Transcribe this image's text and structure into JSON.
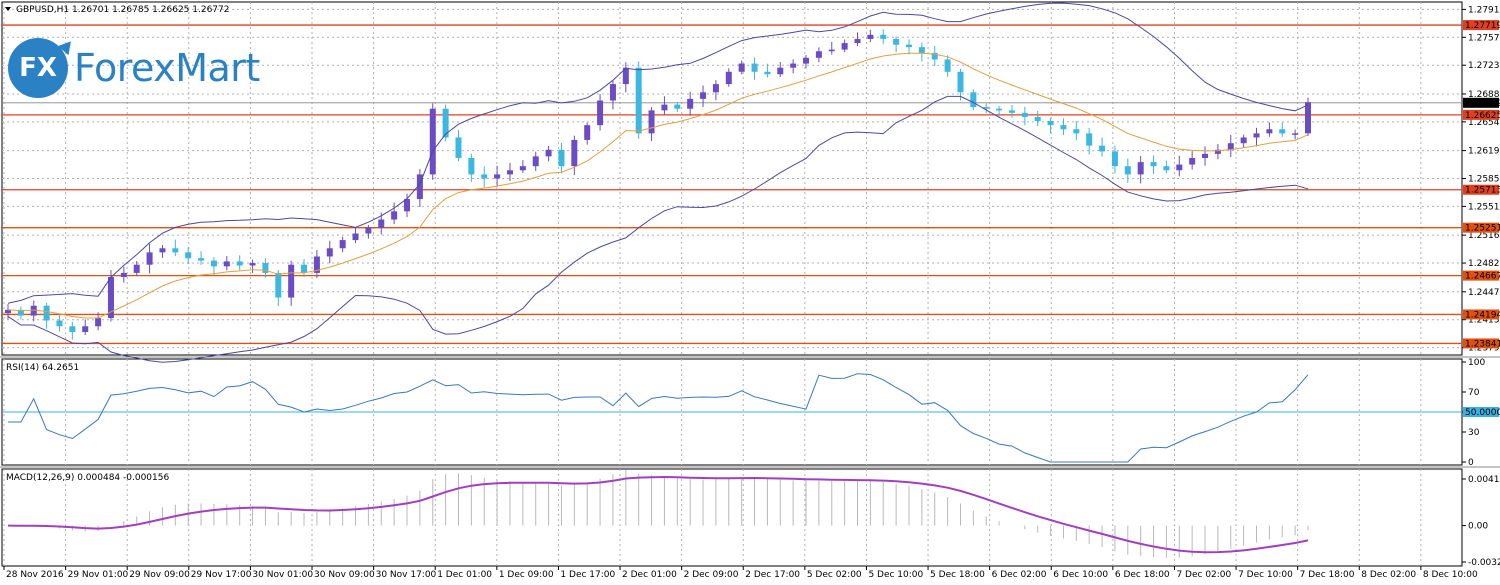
{
  "symbol_header": "GBPUSD,H1  1.26701 1.26785 1.26625 1.26772",
  "logo": {
    "icon_text": "FX",
    "name": "ForexMart"
  },
  "chart_data": {
    "type": "candlestick",
    "symbol": "GBPUSD",
    "timeframe": "H1",
    "ohlc_last": {
      "open": 1.26701,
      "high": 1.26785,
      "low": 1.26625,
      "close": 1.26772
    },
    "price_range": [
      1.237,
      1.28
    ],
    "price_ticks": [
      "1.27910",
      "1.27570",
      "1.27230",
      "1.26880",
      "1.26540",
      "1.26190",
      "1.25850",
      "1.25510",
      "1.25160",
      "1.24820",
      "1.24470",
      "1.24130",
      "1.23790"
    ],
    "price_lines": [
      {
        "value": 1.27719,
        "label": "1.27719",
        "color": "#e04020"
      },
      {
        "value": 1.26625,
        "label": "1.26625",
        "color": "#e04020"
      },
      {
        "value": 1.25713,
        "label": "1.25713",
        "color": "#e04020"
      },
      {
        "value": 1.25251,
        "label": "1.25251",
        "color": "#e05010"
      },
      {
        "value": 1.24667,
        "label": "1.24667",
        "color": "#e05010"
      },
      {
        "value": 1.24194,
        "label": "1.24194",
        "color": "#e05010"
      },
      {
        "value": 1.23841,
        "label": "1.23841",
        "color": "#e05010"
      }
    ],
    "current_price": {
      "value": 1.26772,
      "label": "1.26772"
    },
    "time_labels": [
      "28 Nov 2016",
      "29 Nov 01:00",
      "29 Nov 09:00",
      "29 Nov 17:00",
      "30 Nov 01:00",
      "30 Nov 09:00",
      "30 Nov 17:00",
      "1 Dec 01:00",
      "1 Dec 09:00",
      "1 Dec 17:00",
      "2 Dec 01:00",
      "2 Dec 09:00",
      "2 Dec 17:00",
      "5 Dec 02:00",
      "5 Dec 10:00",
      "5 Dec 18:00",
      "6 Dec 02:00",
      "6 Dec 10:00",
      "6 Dec 18:00",
      "7 Dec 02:00",
      "7 Dec 10:00",
      "7 Dec 18:00",
      "8 Dec 02:00",
      "8 Dec 10:00"
    ],
    "closes": [
      1.2425,
      1.2418,
      1.243,
      1.2412,
      1.2405,
      1.2398,
      1.2405,
      1.2415,
      1.2465,
      1.247,
      1.248,
      1.2495,
      1.25,
      1.2495,
      1.2488,
      1.2485,
      1.2478,
      1.2484,
      1.2479,
      1.2482,
      1.247,
      1.244,
      1.248,
      1.247,
      1.249,
      1.25,
      1.251,
      1.2518,
      1.2525,
      1.2535,
      1.2545,
      1.256,
      1.259,
      1.267,
      1.2635,
      1.261,
      1.259,
      1.2585,
      1.259,
      1.2595,
      1.26,
      1.2612,
      1.262,
      1.26,
      1.2632,
      1.265,
      1.268,
      1.27,
      1.272,
      1.264,
      1.2668,
      1.2675,
      1.267,
      1.2682,
      1.269,
      1.27,
      1.2715,
      1.2725,
      1.2715,
      1.2712,
      1.272,
      1.2725,
      1.2732,
      1.274,
      1.2742,
      1.275,
      1.2755,
      1.276,
      1.2755,
      1.2748,
      1.2745,
      1.2738,
      1.273,
      1.2715,
      1.269,
      1.2672,
      1.267,
      1.2668,
      1.2665,
      1.266,
      1.2655,
      1.265,
      1.2645,
      1.264,
      1.2625,
      1.2618,
      1.26,
      1.259,
      1.2605,
      1.26,
      1.2595,
      1.2602,
      1.261,
      1.2615,
      1.262,
      1.2628,
      1.2635,
      1.264,
      1.2645,
      1.264,
      1.264,
      1.2678
    ],
    "rsi": {
      "label": "RSI(14) 64.2651",
      "period": 14,
      "value": 64.2651,
      "level_line": 50,
      "level_label": "50.0000",
      "ticks": [
        "100",
        "70",
        "50",
        "30",
        "0"
      ]
    },
    "macd": {
      "label": "MACD(12,26,9) 0.000484 -0.000156",
      "params": [
        12,
        26,
        9
      ],
      "main": 0.000484,
      "signal": -0.000156,
      "ticks": [
        "0.004185",
        "0.00",
        "-0.003269"
      ],
      "range": [
        -0.003269,
        0.004185
      ]
    }
  }
}
